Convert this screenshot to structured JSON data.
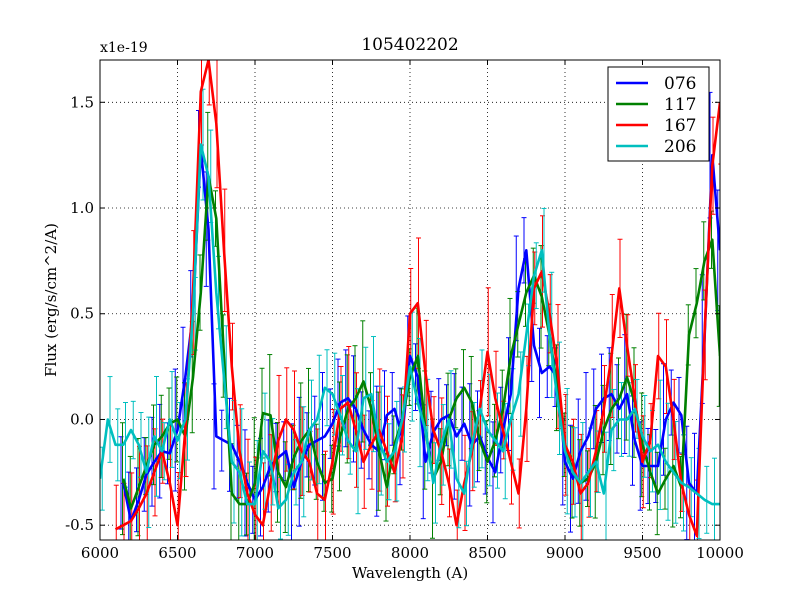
{
  "chart_data": {
    "type": "line",
    "title": "105402202",
    "xlabel": "Wavelength (A)",
    "ylabel": "Flux (erg/s/cm^2/A)",
    "y_multiplier_label": "x1e-19",
    "xlim": [
      6000,
      10000
    ],
    "ylim": [
      -0.57,
      1.7
    ],
    "xticks": [
      6000,
      6500,
      7000,
      7500,
      8000,
      8500,
      9000,
      9500,
      10000
    ],
    "xtick_labels": [
      "6000",
      "6500",
      "7000",
      "7500",
      "8000",
      "8500",
      "9000",
      "9500",
      "10000"
    ],
    "yticks": [
      -0.5,
      0.0,
      0.5,
      1.0,
      1.5
    ],
    "ytick_labels": [
      "-0.5",
      "0.0",
      "0.5",
      "1.0",
      "1.5"
    ],
    "grid": true,
    "legend_position": "top-right",
    "series": [
      {
        "name": "076",
        "color": "#0000ff",
        "x": [
          6150,
          6200,
          6250,
          6300,
          6350,
          6400,
          6450,
          6500,
          6550,
          6600,
          6650,
          6700,
          6750,
          6800,
          6850,
          6900,
          6950,
          7000,
          7050,
          7100,
          7150,
          7200,
          7250,
          7300,
          7350,
          7400,
          7450,
          7500,
          7550,
          7600,
          7650,
          7700,
          7750,
          7800,
          7850,
          7900,
          7950,
          8000,
          8050,
          8100,
          8150,
          8200,
          8250,
          8300,
          8350,
          8400,
          8450,
          8500,
          8550,
          8600,
          8650,
          8700,
          8750,
          8800,
          8850,
          8900,
          8950,
          9000,
          9050,
          9100,
          9150,
          9200,
          9250,
          9300,
          9350,
          9400,
          9450,
          9500,
          9550,
          9600,
          9650,
          9700,
          9750,
          9800,
          9850,
          9900,
          9950,
          10000
        ],
        "y": [
          -0.3,
          -0.48,
          -0.38,
          -0.26,
          -0.2,
          -0.15,
          -0.16,
          -0.05,
          0.2,
          0.5,
          1.28,
          0.9,
          -0.08,
          -0.1,
          -0.12,
          -0.2,
          -0.3,
          -0.38,
          -0.32,
          -0.22,
          -0.18,
          -0.15,
          -0.32,
          -0.2,
          -0.12,
          -0.1,
          -0.08,
          -0.02,
          0.08,
          0.1,
          0.05,
          -0.05,
          -0.12,
          -0.15,
          0.02,
          0.05,
          -0.08,
          0.3,
          0.2,
          -0.2,
          -0.06,
          0.0,
          0.02,
          -0.08,
          -0.02,
          -0.12,
          -0.08,
          -0.18,
          -0.25,
          -0.05,
          0.12,
          0.62,
          0.8,
          0.35,
          0.22,
          0.25,
          0.2,
          -0.2,
          -0.28,
          -0.15,
          -0.08,
          0.05,
          0.1,
          0.12,
          0.05,
          0.12,
          -0.1,
          -0.22,
          -0.22,
          -0.22,
          0.0,
          0.08,
          0.02,
          -0.3,
          -0.35,
          0.38,
          1.25,
          0.8
        ]
      },
      {
        "name": "117",
        "color": "#008000",
        "x": [
          6150,
          6200,
          6250,
          6300,
          6350,
          6400,
          6450,
          6500,
          6550,
          6600,
          6650,
          6700,
          6750,
          6800,
          6850,
          6900,
          6950,
          7000,
          7050,
          7100,
          7150,
          7200,
          7250,
          7300,
          7350,
          7400,
          7450,
          7500,
          7550,
          7600,
          7650,
          7700,
          7750,
          7800,
          7850,
          7900,
          7950,
          8000,
          8050,
          8100,
          8150,
          8200,
          8250,
          8300,
          8350,
          8400,
          8450,
          8500,
          8550,
          8600,
          8650,
          8700,
          8750,
          8800,
          8850,
          8900,
          8950,
          9000,
          9050,
          9100,
          9150,
          9200,
          9250,
          9300,
          9350,
          9400,
          9450,
          9500,
          9550,
          9600,
          9650,
          9700,
          9750,
          9800,
          9850,
          9900,
          9950,
          10000
        ],
        "y": [
          -0.28,
          -0.42,
          -0.32,
          -0.22,
          -0.12,
          -0.08,
          -0.02,
          0.0,
          -0.08,
          0.2,
          0.6,
          1.15,
          0.95,
          0.3,
          -0.35,
          -0.4,
          -0.4,
          -0.3,
          0.03,
          0.02,
          -0.25,
          -0.32,
          -0.18,
          -0.1,
          -0.05,
          -0.2,
          -0.3,
          -0.28,
          -0.08,
          0.05,
          0.1,
          0.18,
          0.05,
          -0.15,
          -0.32,
          -0.12,
          0.0,
          0.2,
          0.3,
          -0.05,
          -0.28,
          -0.2,
          0.0,
          0.1,
          0.15,
          0.08,
          -0.1,
          -0.2,
          -0.1,
          0.05,
          0.3,
          0.45,
          0.6,
          0.68,
          0.58,
          0.4,
          0.15,
          -0.12,
          -0.25,
          -0.3,
          -0.28,
          -0.2,
          -0.05,
          0.05,
          0.1,
          0.2,
          0.08,
          -0.12,
          -0.25,
          -0.35,
          -0.28,
          -0.22,
          -0.32,
          0.4,
          0.55,
          0.75,
          0.85,
          0.3
        ]
      },
      {
        "name": "167",
        "color": "#ff0000",
        "x": [
          6100,
          6150,
          6200,
          6250,
          6300,
          6350,
          6400,
          6450,
          6500,
          6550,
          6600,
          6650,
          6700,
          6750,
          6800,
          6850,
          6900,
          6950,
          7000,
          7050,
          7100,
          7150,
          7200,
          7250,
          7300,
          7350,
          7400,
          7450,
          7500,
          7550,
          7600,
          7650,
          7700,
          7750,
          7800,
          7850,
          7900,
          7950,
          8000,
          8050,
          8100,
          8150,
          8200,
          8250,
          8300,
          8350,
          8400,
          8450,
          8500,
          8550,
          8600,
          8650,
          8700,
          8750,
          8800,
          8850,
          8900,
          8950,
          9000,
          9050,
          9100,
          9150,
          9200,
          9250,
          9300,
          9350,
          9400,
          9450,
          9500,
          9550,
          9600,
          9650,
          9700,
          9750,
          9800,
          9850,
          9900,
          9950,
          10000
        ],
        "y": [
          -0.52,
          -0.5,
          -0.48,
          -0.42,
          -0.35,
          -0.25,
          -0.15,
          -0.3,
          -0.5,
          -0.05,
          0.6,
          1.55,
          1.7,
          1.4,
          0.8,
          0.25,
          -0.15,
          -0.35,
          -0.45,
          -0.5,
          -0.3,
          -0.1,
          0.0,
          -0.05,
          -0.15,
          -0.2,
          -0.35,
          -0.38,
          -0.2,
          0.05,
          0.08,
          -0.05,
          -0.2,
          -0.12,
          -0.05,
          -0.15,
          -0.25,
          -0.08,
          0.5,
          0.55,
          0.22,
          -0.05,
          -0.15,
          -0.3,
          -0.5,
          -0.3,
          -0.15,
          0.05,
          0.32,
          0.1,
          -0.05,
          -0.2,
          -0.35,
          0.05,
          0.62,
          0.7,
          0.5,
          0.25,
          -0.12,
          -0.2,
          -0.35,
          -0.3,
          -0.15,
          0.05,
          0.3,
          0.62,
          0.35,
          0.1,
          -0.2,
          -0.1,
          0.3,
          0.25,
          0.0,
          -0.3,
          -0.45,
          -0.55,
          0.4,
          1.2,
          1.5
        ]
      },
      {
        "name": "206",
        "color": "#00bfbf",
        "x": [
          6000,
          6050,
          6100,
          6150,
          6200,
          6250,
          6300,
          6350,
          6400,
          6450,
          6500,
          6550,
          6600,
          6650,
          6700,
          6750,
          6800,
          6850,
          6900,
          6950,
          7000,
          7050,
          7100,
          7150,
          7200,
          7250,
          7300,
          7350,
          7400,
          7450,
          7500,
          7550,
          7600,
          7650,
          7700,
          7750,
          7800,
          7850,
          7900,
          7950,
          8000,
          8050,
          8100,
          8150,
          8200,
          8250,
          8300,
          8350,
          8400,
          8450,
          8500,
          8550,
          8600,
          8650,
          8700,
          8750,
          8800,
          8850,
          8900,
          8950,
          9000,
          9050,
          9100,
          9150,
          9200,
          9250,
          9300,
          9350,
          9400,
          9450,
          9500,
          9550,
          9600,
          9650,
          9700,
          9750,
          9800,
          9850,
          9900,
          9950,
          10000
        ],
        "y": [
          -0.28,
          0.0,
          -0.12,
          -0.12,
          -0.05,
          -0.12,
          -0.25,
          -0.08,
          -0.15,
          0.0,
          -0.1,
          0.0,
          0.5,
          1.3,
          1.15,
          0.6,
          0.2,
          -0.2,
          -0.25,
          -0.4,
          -0.4,
          -0.15,
          -0.2,
          -0.42,
          -0.38,
          -0.25,
          -0.2,
          -0.05,
          0.0,
          0.15,
          0.12,
          0.02,
          -0.1,
          -0.15,
          0.1,
          0.12,
          -0.1,
          -0.2,
          -0.15,
          0.0,
          0.25,
          0.08,
          -0.05,
          -0.3,
          -0.12,
          0.0,
          -0.28,
          -0.35,
          -0.12,
          0.05,
          -0.05,
          -0.1,
          -0.15,
          0.0,
          0.12,
          0.4,
          0.68,
          0.8,
          0.4,
          0.1,
          -0.15,
          -0.25,
          -0.3,
          -0.25,
          -0.2,
          -0.35,
          -0.05,
          0.0,
          0.0,
          0.05,
          -0.08,
          -0.15,
          -0.12,
          -0.2,
          -0.25,
          -0.3,
          -0.32,
          -0.35,
          -0.38,
          -0.4,
          -0.4
        ]
      }
    ]
  }
}
